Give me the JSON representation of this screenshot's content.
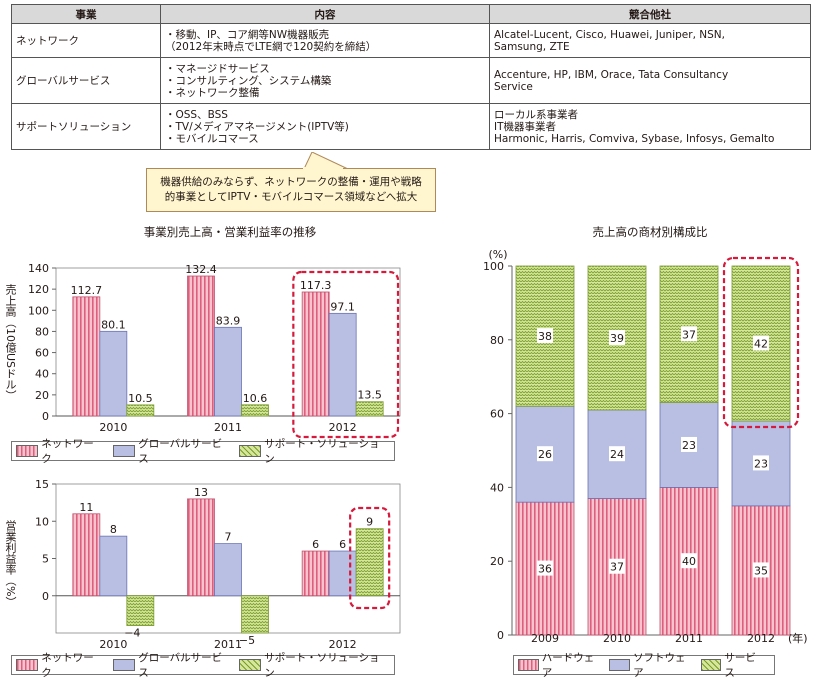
{
  "table": {
    "headers": [
      "事業",
      "内容",
      "競合他社"
    ],
    "rows": [
      {
        "category": "ネットワーク",
        "content": "・移動、IP、コア網等NW機器販売\n（2012年末時点でLTE網で120契約を締結）",
        "competitors": "Alcatel-Lucent, Cisco, Huawei, Juniper, NSN,\nSamsung, ZTE"
      },
      {
        "category": "グローバルサービス",
        "content": "・マネージドサービス\n・コンサルティング、システム構築\n・ネットワーク整備",
        "competitors": "Accenture, HP, IBM, Orace, Tata Consultancy\nService"
      },
      {
        "category": "サポートソリューション",
        "content": "・OSS、BSS\n・TV/メディアマネージメント(IPTV等)\n・モバイルコマース",
        "competitors": "ローカル系事業者\nIT機器事業者\nHarmonic, Harris, Comviva, Sybase, Infosys, Gemalto"
      }
    ]
  },
  "callout": {
    "line1": "機器供給のみならず、ネットワークの整備・運用や戦略",
    "line2": "的事業としてIPTV・モバイルコマース領域などへ拡大"
  },
  "colors": {
    "pink": "#f4a7b9",
    "pink_stripe": "#d94b6b",
    "blue": "#b9bfe3",
    "green": "#cfe28c",
    "green_mark": "#7a9a2c",
    "highlight": "#d7193c"
  },
  "chart_data": [
    {
      "type": "bar",
      "title": "事業別売上高・営業利益率の推移",
      "ylabel": "売上高（10億USドル）",
      "categories": [
        "2010",
        "2011",
        "2012"
      ],
      "ylim": [
        0,
        140
      ],
      "yticks": [
        0,
        20,
        40,
        60,
        80,
        100,
        120,
        140
      ],
      "series": [
        {
          "name": "ネットワーク",
          "values": [
            112.7,
            132.4,
            117.3
          ],
          "labels": [
            "112.7",
            "132.4",
            "117.3"
          ]
        },
        {
          "name": "グローバルサービス",
          "values": [
            80.1,
            83.9,
            97.1
          ],
          "labels": [
            "80.1",
            "83.9",
            "97.1"
          ]
        },
        {
          "name": "サポート・ソリューション",
          "values": [
            10.5,
            10.6,
            13.5
          ],
          "labels": [
            "10.5",
            "10.6",
            "13.5"
          ]
        }
      ],
      "highlight_category": "2012"
    },
    {
      "type": "bar",
      "ylabel": "営業利益率（%）",
      "categories": [
        "2010",
        "2011",
        "2012"
      ],
      "ylim": [
        -5,
        15
      ],
      "yticks": [
        0,
        5,
        10,
        15
      ],
      "series": [
        {
          "name": "ネットワーク",
          "values": [
            11,
            13,
            6
          ],
          "labels": [
            "11",
            "13",
            "6"
          ]
        },
        {
          "name": "グローバルサービス",
          "values": [
            8,
            7,
            6
          ],
          "labels": [
            "8",
            "7",
            "6"
          ]
        },
        {
          "name": "サポート・ソリューション",
          "values": [
            -4,
            -5,
            9
          ],
          "labels": [
            "−4",
            "−5",
            "9"
          ]
        }
      ],
      "highlight": {
        "category": "2012",
        "series": "サポート・ソリューション"
      }
    },
    {
      "type": "bar",
      "stacked": true,
      "title": "売上高の商材別構成比",
      "ylabel": "(%)",
      "xlabel": "(年)",
      "categories": [
        "2009",
        "2010",
        "2011",
        "2012"
      ],
      "ylim": [
        0,
        100
      ],
      "yticks": [
        0,
        20,
        40,
        60,
        80,
        100
      ],
      "series": [
        {
          "name": "ハードウェア",
          "values": [
            36,
            37,
            40,
            35
          ],
          "labels": [
            "36",
            "37",
            "40",
            "35"
          ]
        },
        {
          "name": "ソフトウェア",
          "values": [
            26,
            24,
            23,
            23
          ],
          "labels": [
            "26",
            "24",
            "23",
            "23"
          ]
        },
        {
          "name": "サービス",
          "values": [
            38,
            39,
            37,
            42
          ],
          "labels": [
            "38",
            "39",
            "37",
            "42"
          ]
        }
      ],
      "highlight": {
        "category": "2012",
        "series": "サービス"
      }
    }
  ]
}
